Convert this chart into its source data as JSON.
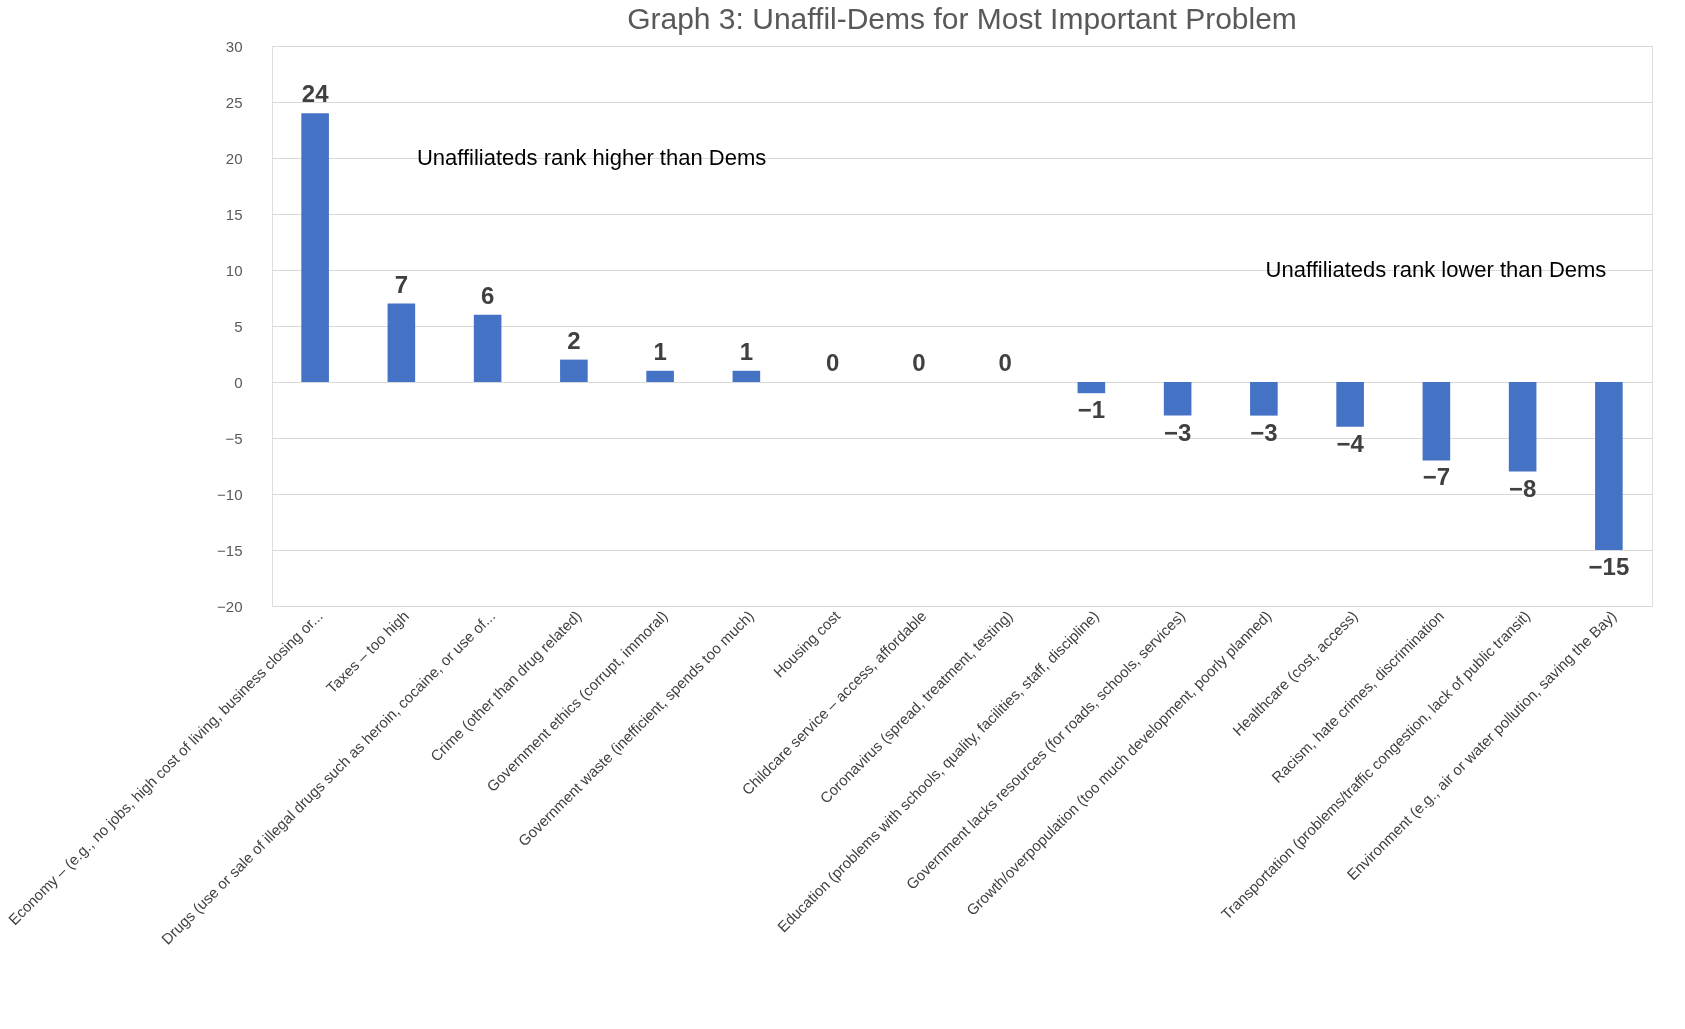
{
  "chart_data": {
    "type": "bar",
    "title": "Graph 3: Unaffil-Dems for Most Important Problem",
    "categories": [
      "Economy – (e.g., no jobs, high cost of living, business closing or...",
      "Taxes – too high",
      "Drugs (use or sale of illegal drugs such as heroin, cocaine, or use of...",
      "Crime (other than drug related)",
      "Government ethics (corrupt, immoral)",
      "Government waste (inefficient, spends too much)",
      "Housing cost",
      "Childcare service – access, affordable",
      "Coronavirus (spread, treatment, testing)",
      "Education (problems with schools, quality, facilities, staff, discipline)",
      "Government lacks resources (for roads, schools, services)",
      "Growth/overpopulation (too much development, poorly planned)",
      "Healthcare (cost, access)",
      "Racism, hate crimes, discrimination",
      "Transportation (problems/traffic congestion, lack of public transit)",
      "Environment (e.g., air or water pollution, saving the Bay)"
    ],
    "values": [
      24,
      7,
      6,
      2,
      1,
      1,
      0,
      0,
      0,
      -1,
      -3,
      -3,
      -4,
      -7,
      -8,
      -15
    ],
    "color": "#4472c4",
    "ylim": [
      -20,
      30
    ],
    "yticks": [
      -20,
      -15,
      -10,
      -5,
      0,
      5,
      10,
      15,
      20,
      25,
      30
    ],
    "grid": "y",
    "data_labels": true,
    "annotations": [
      "Unaffiliateds rank higher than Dems",
      "Unaffiliateds rank lower than Dems"
    ]
  }
}
